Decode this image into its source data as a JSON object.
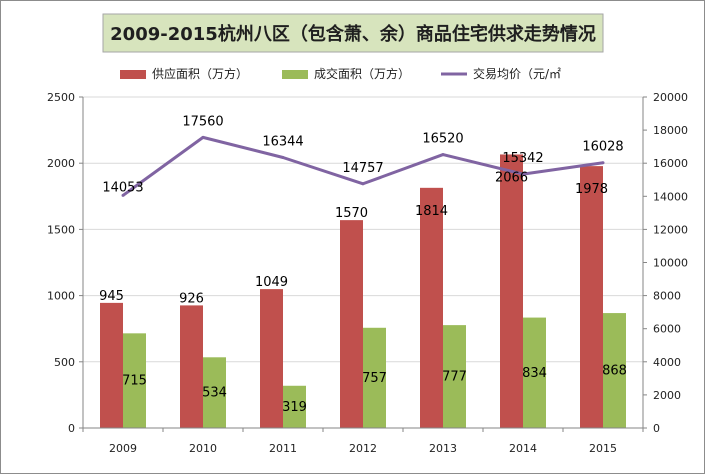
{
  "chart_data": {
    "type": "bar",
    "title": "2009-2015杭州八区（包含萧、余）商品住宅供求走势情况",
    "categories": [
      "2009",
      "2010",
      "2011",
      "2012",
      "2013",
      "2014",
      "2015"
    ],
    "series": [
      {
        "name": "供应面积（万方）",
        "type": "bar",
        "axis": "left",
        "color": "#c0504d",
        "values": [
          945,
          926,
          1049,
          1570,
          1814,
          2066,
          1978
        ]
      },
      {
        "name": "成交面积（万方）",
        "type": "bar",
        "axis": "left",
        "color": "#9bbb59",
        "values": [
          715,
          534,
          319,
          757,
          777,
          834,
          868
        ]
      },
      {
        "name": "交易均价（元/㎡",
        "type": "line",
        "axis": "right",
        "color": "#8064a2",
        "values": [
          14053,
          17560,
          16344,
          14757,
          16520,
          15342,
          16028
        ]
      }
    ],
    "y_left": {
      "min": 0,
      "max": 2500,
      "ticks": [
        "0",
        "500",
        "1000",
        "1500",
        "2000",
        "2500"
      ]
    },
    "y_right": {
      "min": 0,
      "max": 20000,
      "ticks": [
        "0",
        "2000",
        "4000",
        "6000",
        "8000",
        "10000",
        "12000",
        "14000",
        "16000",
        "18000",
        "20000"
      ]
    },
    "grid": true,
    "legend_position": "top"
  }
}
